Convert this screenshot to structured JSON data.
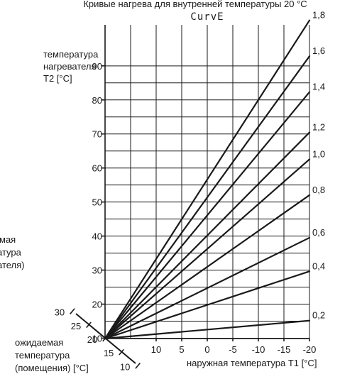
{
  "chart_data": {
    "type": "line",
    "title": "Кривые нагрева для внутренней температуры 20 °C",
    "display_label": "CurvE",
    "ylabel_lines": [
      "температура",
      "нагревателя",
      "T2 [°C]"
    ],
    "xlabel": "наружная температура T1 [°C]",
    "room_axis_label_lines": [
      "ожидаемая",
      "температура",
      "(помещения) [°C]"
    ],
    "left_clipped_label_lines": [
      "мая",
      "атура",
      "ателя)"
    ],
    "ylim": [
      20,
      90
    ],
    "yticks": [
      10,
      20,
      30,
      40,
      50,
      60,
      70,
      80,
      90
    ],
    "xlim": [
      20,
      -20
    ],
    "xticks": [
      10,
      5,
      0,
      -5,
      -10,
      -15,
      -20
    ],
    "room_ticks": [
      {
        "value": 30,
        "label": "30"
      },
      {
        "value": 25,
        "label": "25"
      },
      {
        "value": 20,
        "label": "20"
      },
      {
        "value": 15,
        "label": "15"
      },
      {
        "value": 10,
        "label": "10"
      }
    ],
    "origin": {
      "x": 20,
      "y": 20
    },
    "series": [
      {
        "name": "0,2",
        "values_at_x": {
          "20": 20,
          "-20": 24
        }
      },
      {
        "name": "0,4",
        "values_at_x": {
          "20": 20,
          "-20": 35
        }
      },
      {
        "name": "0,6",
        "values_at_x": {
          "20": 20,
          "-20": 42.5
        }
      },
      {
        "name": "0,8",
        "values_at_x": {
          "20": 20,
          "-20": 52
        }
      },
      {
        "name": "1,0",
        "values_at_x": {
          "20": 20,
          "-20": 60
        }
      },
      {
        "name": "1,2",
        "values_at_x": {
          "20": 20,
          "-20": 66
        }
      },
      {
        "name": "1,4",
        "values_at_x": {
          "20": 20,
          "-20": 75
        }
      },
      {
        "name": "1,6",
        "values_at_x": {
          "20": 20,
          "-20": 83
        }
      },
      {
        "name": "1,8",
        "values_at_x": {
          "20": 20,
          "-20": 91
        }
      }
    ],
    "grid": true
  }
}
